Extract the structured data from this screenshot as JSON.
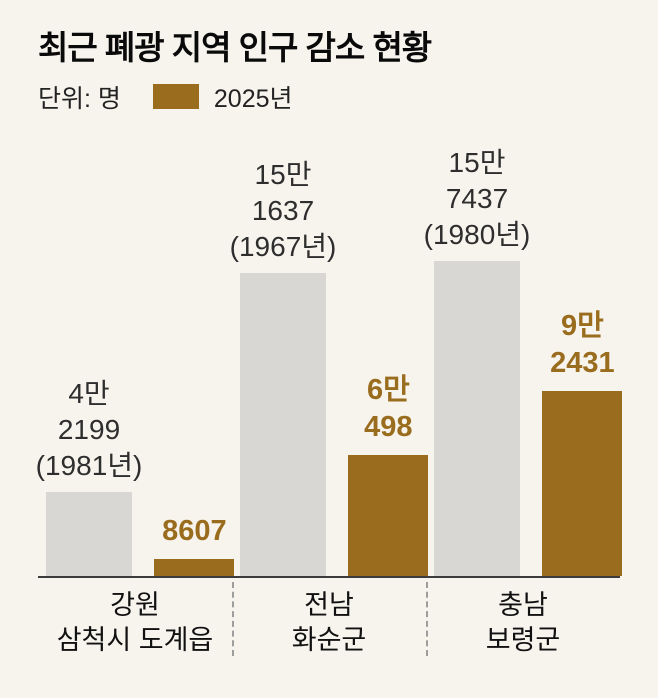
{
  "title": "최근 폐광 지역 인구 감소 현황",
  "unit_label": "단위: 명",
  "legend": {
    "label": "2025년"
  },
  "colors": {
    "bar_2025": "#9a6c1e",
    "bar_peak": "#d9d7d4",
    "background": "#f7f4ee",
    "text": "#1a1a1a"
  },
  "chart_data": {
    "type": "bar",
    "title": "최근 폐광 지역 인구 감소 현황",
    "unit": "명",
    "legend": [
      {
        "name": "2025년",
        "color": "#9a6c1e"
      }
    ],
    "ylim": [
      0,
      160000
    ],
    "legend_position": "top-left",
    "grid": false,
    "groups": [
      {
        "category": "강원\n삼척시 도계읍",
        "peak": {
          "value": 42199,
          "year": "1981년",
          "label": "4만\n2199\n(1981년)"
        },
        "current_2025": {
          "value": 8607,
          "label": "8607"
        }
      },
      {
        "category": "전남\n화순군",
        "peak": {
          "value": 151637,
          "year": "1967년",
          "label": "15만\n1637\n(1967년)"
        },
        "current_2025": {
          "value": 60498,
          "label": "6만\n498"
        }
      },
      {
        "category": "충남\n보령군",
        "peak": {
          "value": 157437,
          "year": "1980년",
          "label": "15만\n7437\n(1980년)"
        },
        "current_2025": {
          "value": 92431,
          "label": "9만\n2431"
        }
      }
    ]
  }
}
